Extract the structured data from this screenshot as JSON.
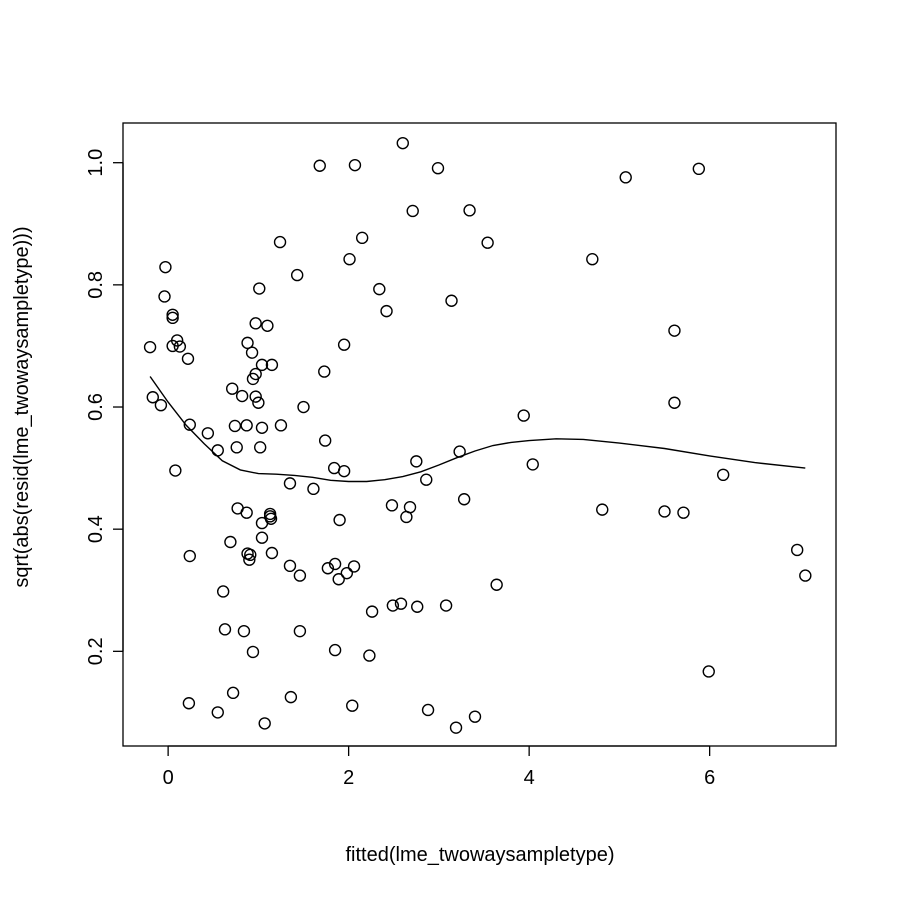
{
  "chart_data": {
    "type": "scatter",
    "title": "",
    "xlabel": "fitted(lme_twowaysampletype)",
    "ylabel": "sqrt(abs(resid(lme_twowaysampletype)))",
    "xlim": [
      -0.5,
      7.4
    ],
    "ylim": [
      0.045,
      1.065
    ],
    "xticks": [
      0,
      2,
      4,
      6
    ],
    "xtick_labels": [
      "0",
      "2",
      "4",
      "6"
    ],
    "yticks": [
      0.2,
      0.4,
      0.6,
      0.8,
      1.0
    ],
    "ytick_labels": [
      "0.2",
      "0.4",
      "0.6",
      "0.8",
      "1.0"
    ],
    "grid": false,
    "points": [
      [
        -0.2,
        0.698
      ],
      [
        -0.17,
        0.616
      ],
      [
        -0.08,
        0.603
      ],
      [
        -0.03,
        0.829
      ],
      [
        -0.04,
        0.781
      ],
      [
        0.05,
        0.751
      ],
      [
        0.05,
        0.746
      ],
      [
        0.05,
        0.7
      ],
      [
        0.1,
        0.709
      ],
      [
        0.13,
        0.699
      ],
      [
        0.08,
        0.496
      ],
      [
        0.22,
        0.679
      ],
      [
        0.24,
        0.571
      ],
      [
        0.24,
        0.356
      ],
      [
        0.23,
        0.115
      ],
      [
        0.44,
        0.557
      ],
      [
        0.55,
        0.529
      ],
      [
        0.55,
        0.1
      ],
      [
        0.61,
        0.298
      ],
      [
        0.63,
        0.236
      ],
      [
        0.69,
        0.379
      ],
      [
        0.71,
        0.63
      ],
      [
        0.74,
        0.569
      ],
      [
        0.72,
        0.132
      ],
      [
        0.76,
        0.534
      ],
      [
        0.77,
        0.434
      ],
      [
        0.82,
        0.618
      ],
      [
        0.84,
        0.233
      ],
      [
        0.87,
        0.57
      ],
      [
        0.87,
        0.427
      ],
      [
        0.88,
        0.705
      ],
      [
        0.88,
        0.36
      ],
      [
        0.9,
        0.35
      ],
      [
        0.91,
        0.358
      ],
      [
        0.93,
        0.689
      ],
      [
        0.94,
        0.646
      ],
      [
        0.94,
        0.199
      ],
      [
        0.97,
        0.737
      ],
      [
        0.97,
        0.654
      ],
      [
        0.97,
        0.617
      ],
      [
        1.0,
        0.607
      ],
      [
        1.01,
        0.794
      ],
      [
        1.02,
        0.534
      ],
      [
        1.04,
        0.669
      ],
      [
        1.04,
        0.566
      ],
      [
        1.04,
        0.41
      ],
      [
        1.04,
        0.386
      ],
      [
        1.07,
        0.082
      ],
      [
        1.1,
        0.733
      ],
      [
        1.13,
        0.425
      ],
      [
        1.13,
        0.421
      ],
      [
        1.14,
        0.417
      ],
      [
        1.15,
        0.669
      ],
      [
        1.15,
        0.361
      ],
      [
        1.24,
        0.87
      ],
      [
        1.25,
        0.57
      ],
      [
        1.35,
        0.475
      ],
      [
        1.35,
        0.34
      ],
      [
        1.36,
        0.125
      ],
      [
        1.43,
        0.816
      ],
      [
        1.46,
        0.324
      ],
      [
        1.46,
        0.233
      ],
      [
        1.5,
        0.6
      ],
      [
        1.61,
        0.466
      ],
      [
        1.68,
        0.995
      ],
      [
        1.73,
        0.658
      ],
      [
        1.74,
        0.545
      ],
      [
        1.77,
        0.336
      ],
      [
        1.84,
        0.5
      ],
      [
        1.85,
        0.343
      ],
      [
        1.85,
        0.202
      ],
      [
        1.89,
        0.318
      ],
      [
        1.9,
        0.415
      ],
      [
        1.95,
        0.702
      ],
      [
        1.95,
        0.495
      ],
      [
        1.98,
        0.328
      ],
      [
        2.01,
        0.842
      ],
      [
        2.04,
        0.111
      ],
      [
        2.06,
        0.339
      ],
      [
        2.07,
        0.996
      ],
      [
        2.15,
        0.877
      ],
      [
        2.23,
        0.193
      ],
      [
        2.26,
        0.265
      ],
      [
        2.34,
        0.793
      ],
      [
        2.42,
        0.757
      ],
      [
        2.48,
        0.439
      ],
      [
        2.49,
        0.275
      ],
      [
        2.58,
        0.278
      ],
      [
        2.6,
        1.032
      ],
      [
        2.64,
        0.42
      ],
      [
        2.68,
        0.436
      ],
      [
        2.71,
        0.921
      ],
      [
        2.75,
        0.511
      ],
      [
        2.76,
        0.273
      ],
      [
        2.86,
        0.481
      ],
      [
        2.88,
        0.104
      ],
      [
        2.99,
        0.991
      ],
      [
        3.08,
        0.275
      ],
      [
        3.14,
        0.774
      ],
      [
        3.19,
        0.075
      ],
      [
        3.23,
        0.527
      ],
      [
        3.28,
        0.449
      ],
      [
        3.34,
        0.922
      ],
      [
        3.4,
        0.093
      ],
      [
        3.54,
        0.869
      ],
      [
        3.64,
        0.309
      ],
      [
        3.94,
        0.586
      ],
      [
        4.04,
        0.506
      ],
      [
        4.7,
        0.842
      ],
      [
        4.81,
        0.432
      ],
      [
        5.07,
        0.976
      ],
      [
        5.5,
        0.429
      ],
      [
        5.61,
        0.725
      ],
      [
        5.61,
        0.607
      ],
      [
        5.71,
        0.427
      ],
      [
        5.88,
        0.99
      ],
      [
        5.99,
        0.167
      ],
      [
        6.15,
        0.489
      ],
      [
        6.97,
        0.366
      ],
      [
        7.06,
        0.324
      ]
    ],
    "smooth_line": [
      [
        -0.2,
        0.65
      ],
      [
        0.0,
        0.608
      ],
      [
        0.2,
        0.57
      ],
      [
        0.4,
        0.54
      ],
      [
        0.6,
        0.512
      ],
      [
        0.8,
        0.497
      ],
      [
        1.0,
        0.491
      ],
      [
        1.2,
        0.49
      ],
      [
        1.4,
        0.488
      ],
      [
        1.6,
        0.485
      ],
      [
        1.8,
        0.48
      ],
      [
        2.0,
        0.478
      ],
      [
        2.2,
        0.478
      ],
      [
        2.4,
        0.481
      ],
      [
        2.6,
        0.486
      ],
      [
        2.8,
        0.494
      ],
      [
        3.0,
        0.505
      ],
      [
        3.2,
        0.517
      ],
      [
        3.4,
        0.528
      ],
      [
        3.6,
        0.537
      ],
      [
        3.8,
        0.542
      ],
      [
        4.0,
        0.545
      ],
      [
        4.3,
        0.548
      ],
      [
        4.6,
        0.547
      ],
      [
        5.0,
        0.541
      ],
      [
        5.5,
        0.532
      ],
      [
        6.0,
        0.52
      ],
      [
        6.5,
        0.509
      ],
      [
        7.06,
        0.5
      ]
    ]
  }
}
